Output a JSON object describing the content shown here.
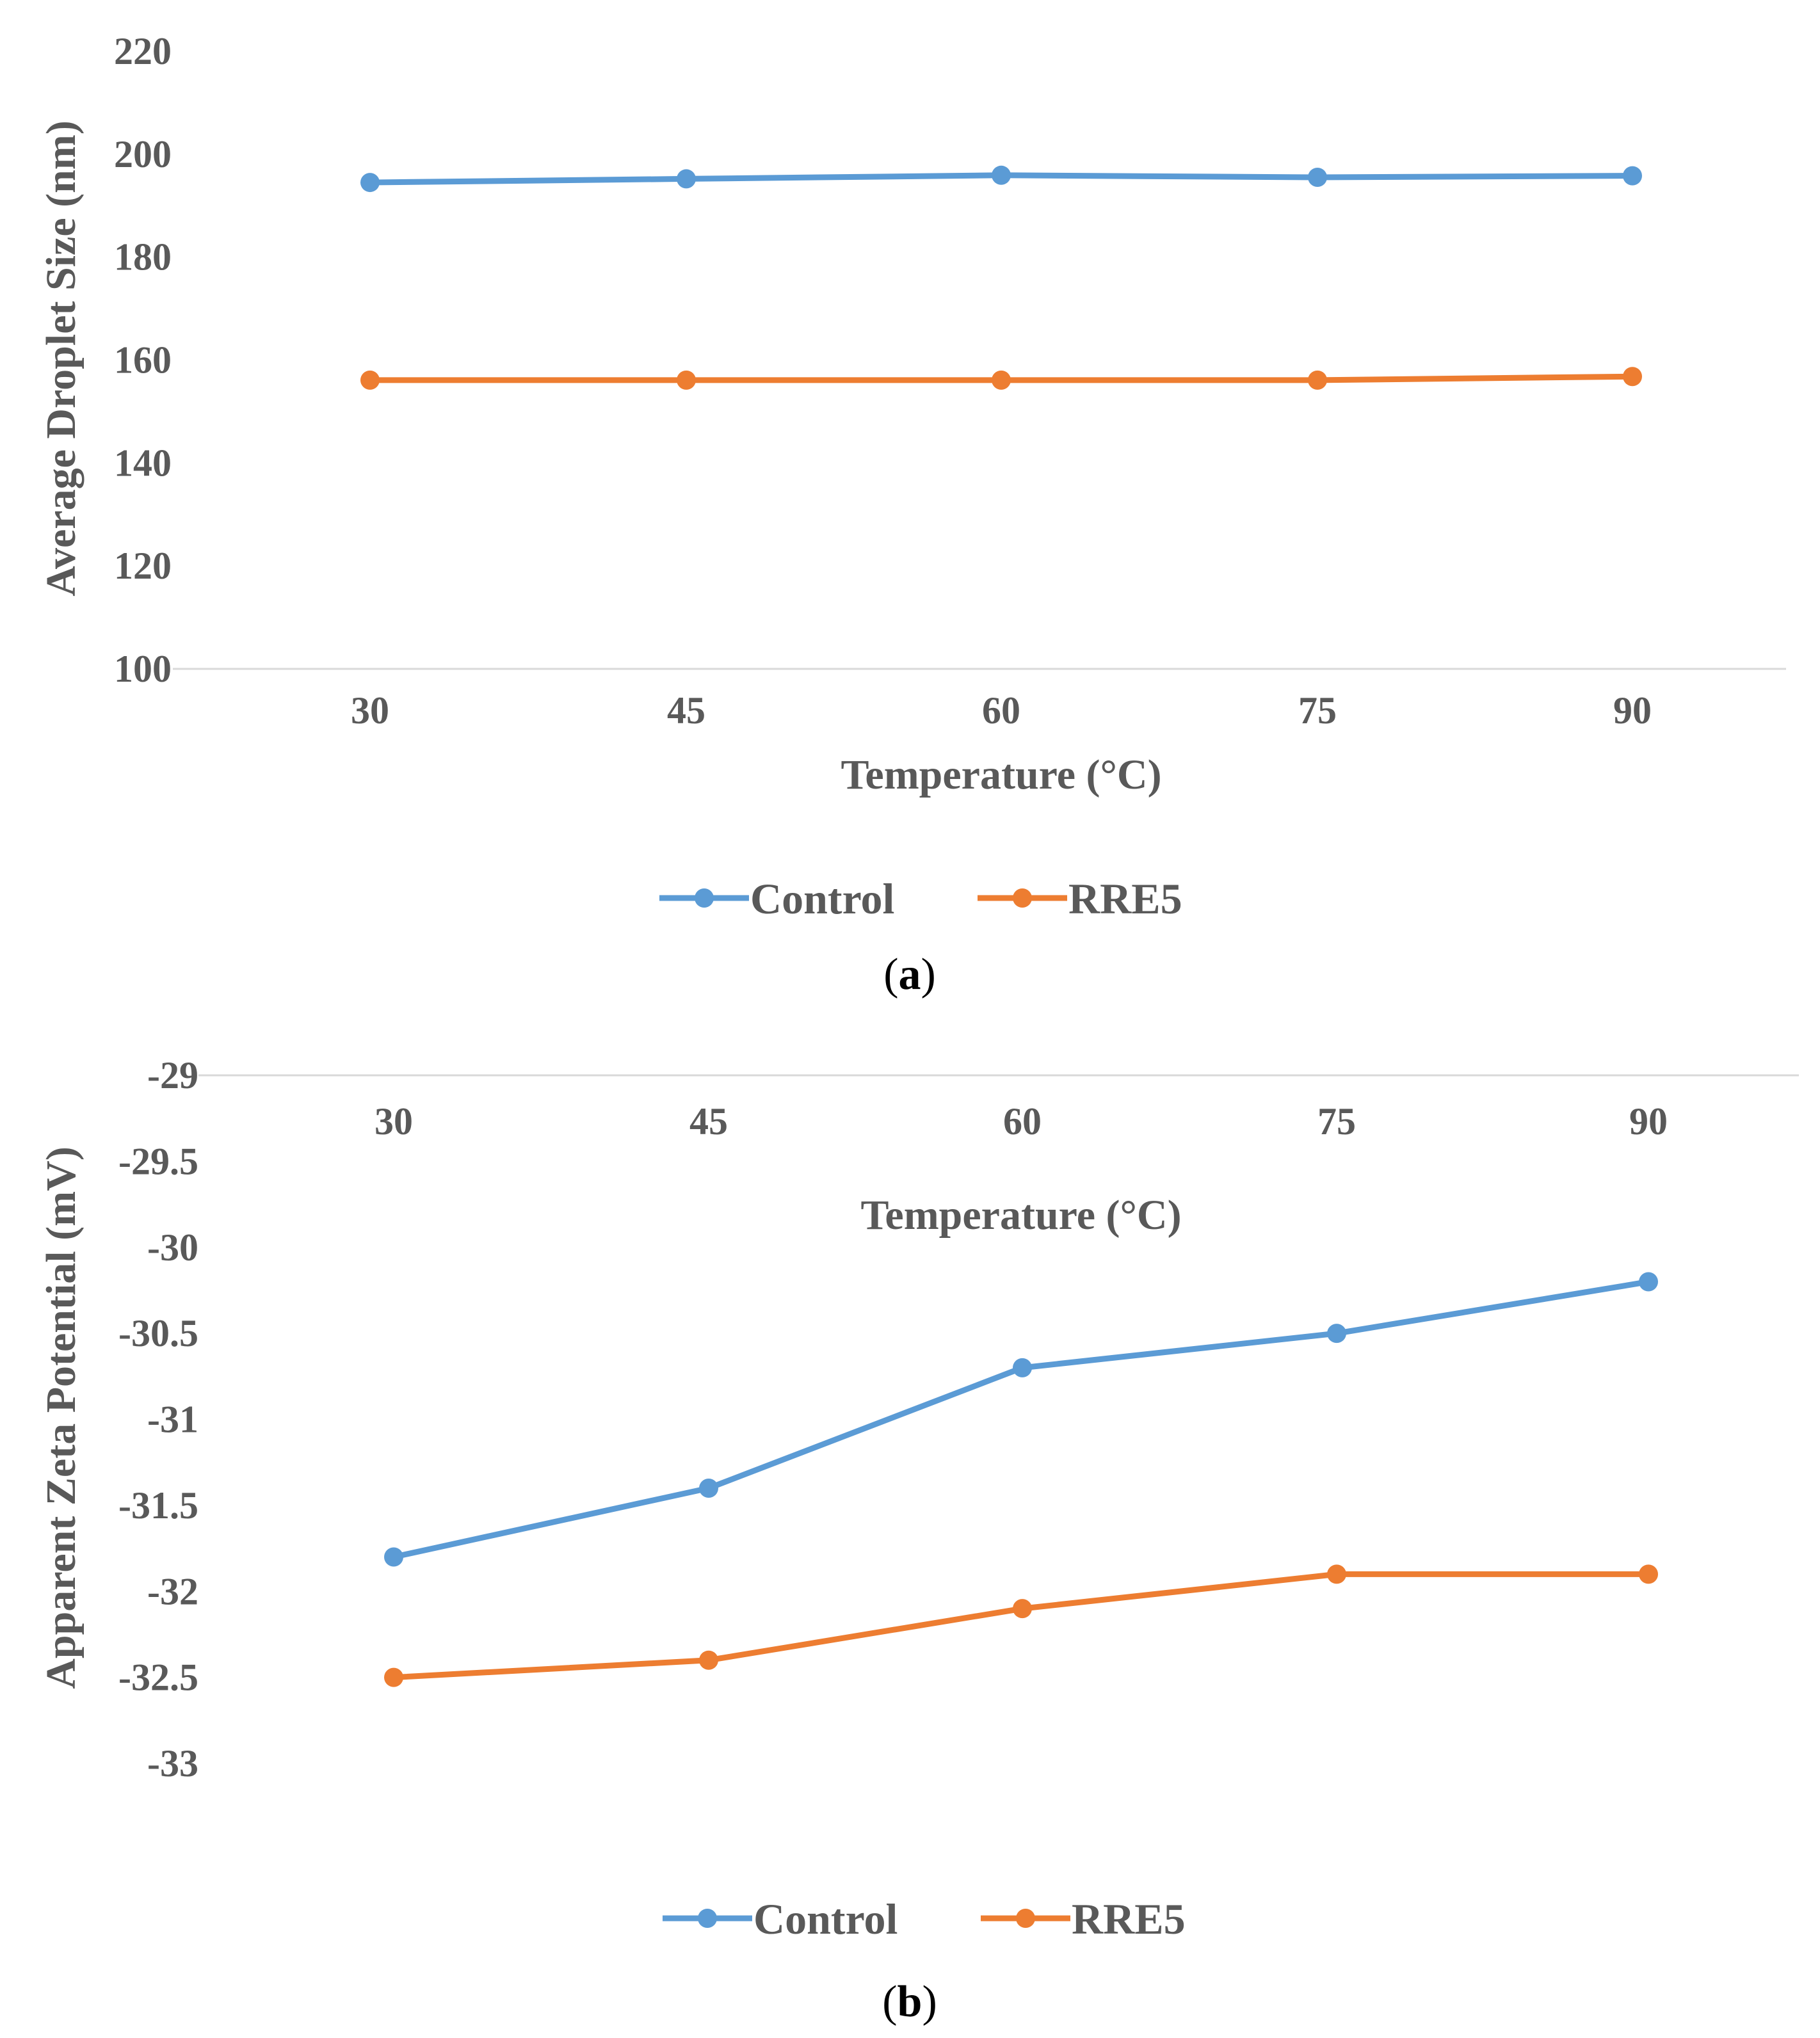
{
  "chart_data": [
    {
      "type": "line",
      "panel_label": "a",
      "categories": [
        "30",
        "45",
        "60",
        "75",
        "90"
      ],
      "series": [
        {
          "name": "Control",
          "values": [
            194.5,
            195.2,
            195.9,
            195.5,
            195.8
          ],
          "color": "#5B9BD5"
        },
        {
          "name": "RRE5",
          "values": [
            156.1,
            156.1,
            156.1,
            156.1,
            156.8
          ],
          "color": "#ED7D31"
        }
      ],
      "xlabel": "Temperature (°C)",
      "ylabel": "Average Droplet Size (nm)",
      "ylim": [
        100,
        220
      ],
      "yticks": [
        100,
        120,
        140,
        160,
        180,
        200,
        220
      ],
      "grid": false,
      "legend": "bottom"
    },
    {
      "type": "line",
      "panel_label": "b",
      "categories": [
        "30",
        "45",
        "60",
        "75",
        "90"
      ],
      "series": [
        {
          "name": "Control",
          "values": [
            -31.8,
            -31.4,
            -30.7,
            -30.5,
            -30.2
          ],
          "color": "#5B9BD5"
        },
        {
          "name": "RRE5",
          "values": [
            -32.5,
            -32.4,
            -32.1,
            -31.9,
            -31.9
          ],
          "color": "#ED7D31"
        }
      ],
      "xlabel": "Temperature (°C)",
      "ylabel": "Apparent Zeta Potential (mV)",
      "ylim": [
        -33,
        -29
      ],
      "yticks": [
        -29,
        -29.5,
        -30,
        -30.5,
        -31,
        -31.5,
        -32,
        -32.5,
        -33
      ],
      "grid": false,
      "legend": "bottom"
    }
  ]
}
